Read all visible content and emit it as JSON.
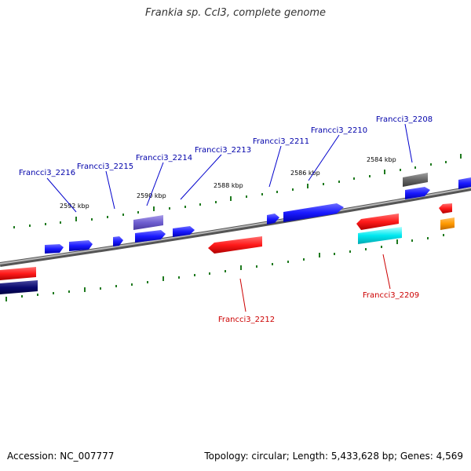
{
  "title": "Frankia sp. CcI3, complete genome",
  "accession": "Accession: NC_007777",
  "summary": "Topology: circular; Length: 5,433,628 bp; Genes: 4,569",
  "colors": {
    "forward_gene": "#1a1aff",
    "reverse_gene": "#ff1a1a",
    "backbone": "#8a8a8a",
    "tick": "#1f7a1f",
    "label_forward": "#0000aa",
    "label_reverse": "#cc0000"
  },
  "scale_labels": [
    "2592 kbp",
    "2590 kbp",
    "2588 kbp",
    "2586 kbp",
    "2584 kbp"
  ],
  "gene_labels": {
    "forward": [
      "Francci3_2216",
      "Francci3_2215",
      "Francci3_2214",
      "Francci3_2213",
      "Francci3_2211",
      "Francci3_2210",
      "Francci3_2208"
    ],
    "reverse": [
      "Francci3_2212",
      "Francci3_2209"
    ]
  }
}
